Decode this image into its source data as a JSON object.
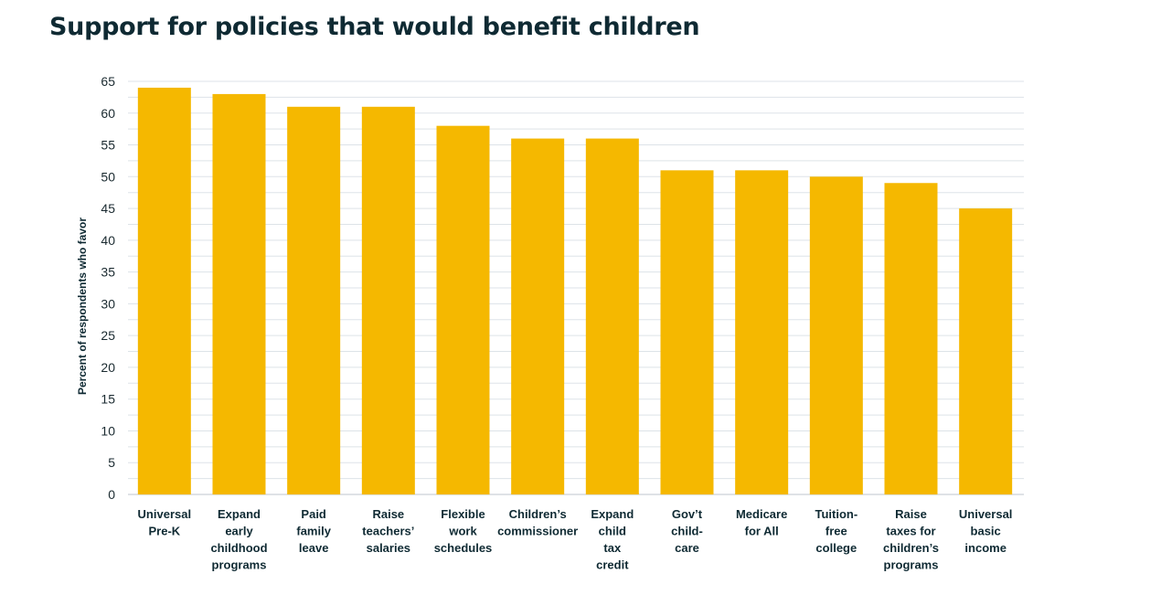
{
  "chart_data": {
    "type": "bar",
    "title": "Support for policies that would benefit children",
    "xlabel": "",
    "ylabel": "Percent of respondents who favor",
    "ylim": [
      0,
      65
    ],
    "yticks": [
      0,
      5,
      10,
      15,
      20,
      25,
      30,
      35,
      40,
      45,
      50,
      55,
      60,
      65
    ],
    "grid": true,
    "bar_color": "#f5b800",
    "categories": [
      [
        "Universal",
        "Pre-K"
      ],
      [
        "Expand",
        "early",
        "childhood",
        "programs"
      ],
      [
        "Paid",
        "family",
        "leave"
      ],
      [
        "Raise",
        "teachers’",
        "salaries"
      ],
      [
        "Flexible",
        "work",
        "schedules"
      ],
      [
        "Children’s",
        "commissioner"
      ],
      [
        "Expand",
        "child",
        "tax",
        "credit"
      ],
      [
        "Gov’t",
        "child-",
        "care"
      ],
      [
        "Medicare",
        "for All"
      ],
      [
        "Tuition-",
        "free",
        "college"
      ],
      [
        "Raise",
        "taxes for",
        "children’s",
        "programs"
      ],
      [
        "Universal",
        "basic",
        "income"
      ]
    ],
    "values": [
      64,
      63,
      61,
      61,
      58,
      56,
      56,
      51,
      51,
      50,
      49,
      45
    ]
  }
}
